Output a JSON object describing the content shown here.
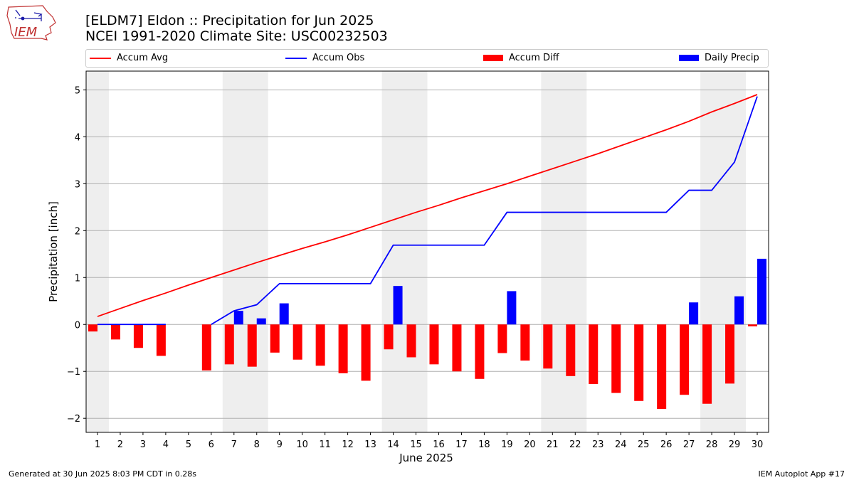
{
  "header": {
    "title_line1": "[ELDM7] Eldon :: Precipitation for Jun 2025",
    "title_line2": "NCEI 1991-2020 Climate Site: USC00232503"
  },
  "logo": {
    "text": "IEM",
    "icon": "iowa-state-outline-logo"
  },
  "footer": {
    "generated": "Generated at 30 Jun 2025 8:03 PM CDT in 0.28s",
    "app": "IEM Autoplot App #17"
  },
  "colors": {
    "accum_avg": "#ff0000",
    "accum_obs": "#0000ff",
    "accum_diff": "#ff0000",
    "daily_precip": "#0000ff",
    "weekend_band": "#eeeeee",
    "grid": "#b0b0b0"
  },
  "chart_data": {
    "type": "bar",
    "xlabel": "June 2025",
    "ylabel": "Precipitation [inch]",
    "ylim": [
      -2.3,
      5.4
    ],
    "yticks": [
      -2,
      -1,
      0,
      1,
      2,
      3,
      4,
      5
    ],
    "ytick_labels": [
      "−2",
      "−1",
      "0",
      "1",
      "2",
      "3",
      "4",
      "5"
    ],
    "grid": "horizontal",
    "legend_placement": "top",
    "categories": [
      1,
      2,
      3,
      4,
      5,
      6,
      7,
      8,
      9,
      10,
      11,
      12,
      13,
      14,
      15,
      16,
      17,
      18,
      19,
      20,
      21,
      22,
      23,
      24,
      25,
      26,
      27,
      28,
      29,
      30
    ],
    "weekend_days": [
      1,
      7,
      8,
      14,
      15,
      21,
      22,
      28,
      29
    ],
    "legend": [
      {
        "label": "Accum Avg",
        "kind": "line",
        "color": "#ff0000"
      },
      {
        "label": "Accum Obs",
        "kind": "line",
        "color": "#0000ff"
      },
      {
        "label": "Accum Diff",
        "kind": "bar",
        "color": "#ff0000"
      },
      {
        "label": "Daily Precip",
        "kind": "bar",
        "color": "#0000ff"
      }
    ],
    "series": [
      {
        "name": "Accum Avg",
        "type": "line",
        "values": [
          0.17,
          0.34,
          0.51,
          0.67,
          0.84,
          1.0,
          1.16,
          1.32,
          1.47,
          1.62,
          1.76,
          1.91,
          2.07,
          2.23,
          2.39,
          2.54,
          2.7,
          2.85,
          3.0,
          3.16,
          3.32,
          3.48,
          3.64,
          3.81,
          3.98,
          4.15,
          4.33,
          4.53,
          4.71,
          4.9
        ]
      },
      {
        "name": "Accum Obs",
        "type": "line",
        "gap_after_day": 4,
        "values": [
          0.0,
          0.0,
          0.0,
          0.0,
          null,
          0.0,
          0.29,
          0.42,
          0.87,
          0.87,
          0.87,
          0.87,
          0.87,
          1.69,
          1.69,
          1.69,
          1.69,
          1.69,
          2.39,
          2.39,
          2.39,
          2.39,
          2.39,
          2.39,
          2.39,
          2.39,
          2.86,
          2.86,
          3.46,
          4.86
        ]
      },
      {
        "name": "Accum Diff",
        "type": "bar",
        "values": [
          -0.15,
          -0.32,
          -0.5,
          -0.67,
          null,
          -0.98,
          -0.85,
          -0.9,
          -0.6,
          -0.75,
          -0.88,
          -1.04,
          -1.2,
          -0.53,
          -0.7,
          -0.85,
          -1.0,
          -1.16,
          -0.61,
          -0.77,
          -0.94,
          -1.1,
          -1.27,
          -1.46,
          -1.63,
          -1.8,
          -1.5,
          -1.69,
          -1.26,
          -0.04
        ]
      },
      {
        "name": "Daily Precip",
        "type": "bar",
        "values": [
          0.0,
          0.0,
          0.0,
          0.0,
          0.0,
          0.0,
          0.29,
          0.13,
          0.45,
          0.0,
          0.0,
          0.0,
          0.0,
          0.82,
          0.0,
          0.0,
          0.0,
          0.0,
          0.71,
          0.0,
          0.0,
          0.0,
          0.0,
          0.0,
          0.0,
          0.0,
          0.47,
          0.0,
          0.6,
          1.4
        ]
      }
    ]
  }
}
